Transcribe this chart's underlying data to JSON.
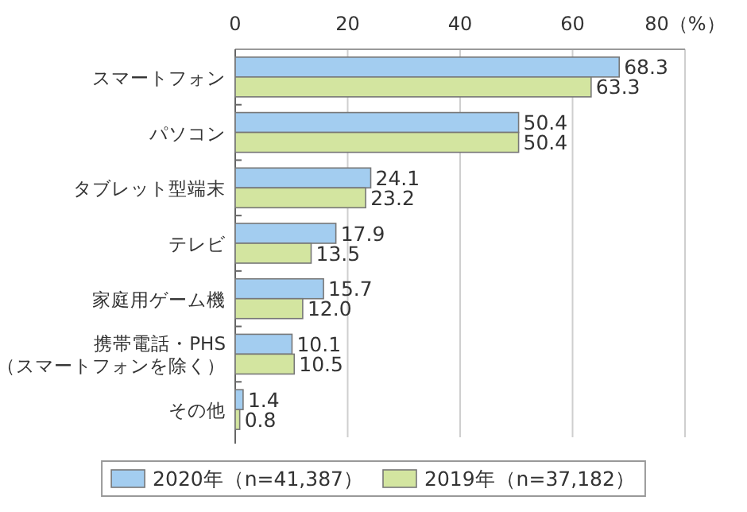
{
  "chart_data": {
    "type": "bar",
    "orientation": "horizontal",
    "categories": [
      "スマートフォン",
      "パソコン",
      "タブレット型端末",
      "テレビ",
      "家庭用ゲーム機",
      "携帯電話・PHS\n（スマートフォンを除く）",
      "その他"
    ],
    "series": [
      {
        "name": "2020年（n=41,387）",
        "color": "#a3cdf0",
        "values": [
          68.3,
          50.4,
          24.1,
          17.9,
          15.7,
          10.1,
          1.4
        ],
        "value_labels": [
          "68.3",
          "50.4",
          "24.1",
          "17.9",
          "15.7",
          "10.1",
          "1.4"
        ]
      },
      {
        "name": "2019年（n=37,182）",
        "color": "#d3e5a0",
        "values": [
          63.3,
          50.4,
          23.2,
          13.5,
          12.0,
          10.5,
          0.8
        ],
        "value_labels": [
          "63.3",
          "50.4",
          "23.2",
          "13.5",
          "12.0",
          "10.5",
          "0.8"
        ]
      }
    ],
    "xlim": [
      0,
      80
    ],
    "xticks": [
      0,
      20,
      40,
      60,
      {
        "value": 80,
        "label": "80（%）"
      }
    ],
    "grid": "x",
    "legend": "bottom"
  }
}
